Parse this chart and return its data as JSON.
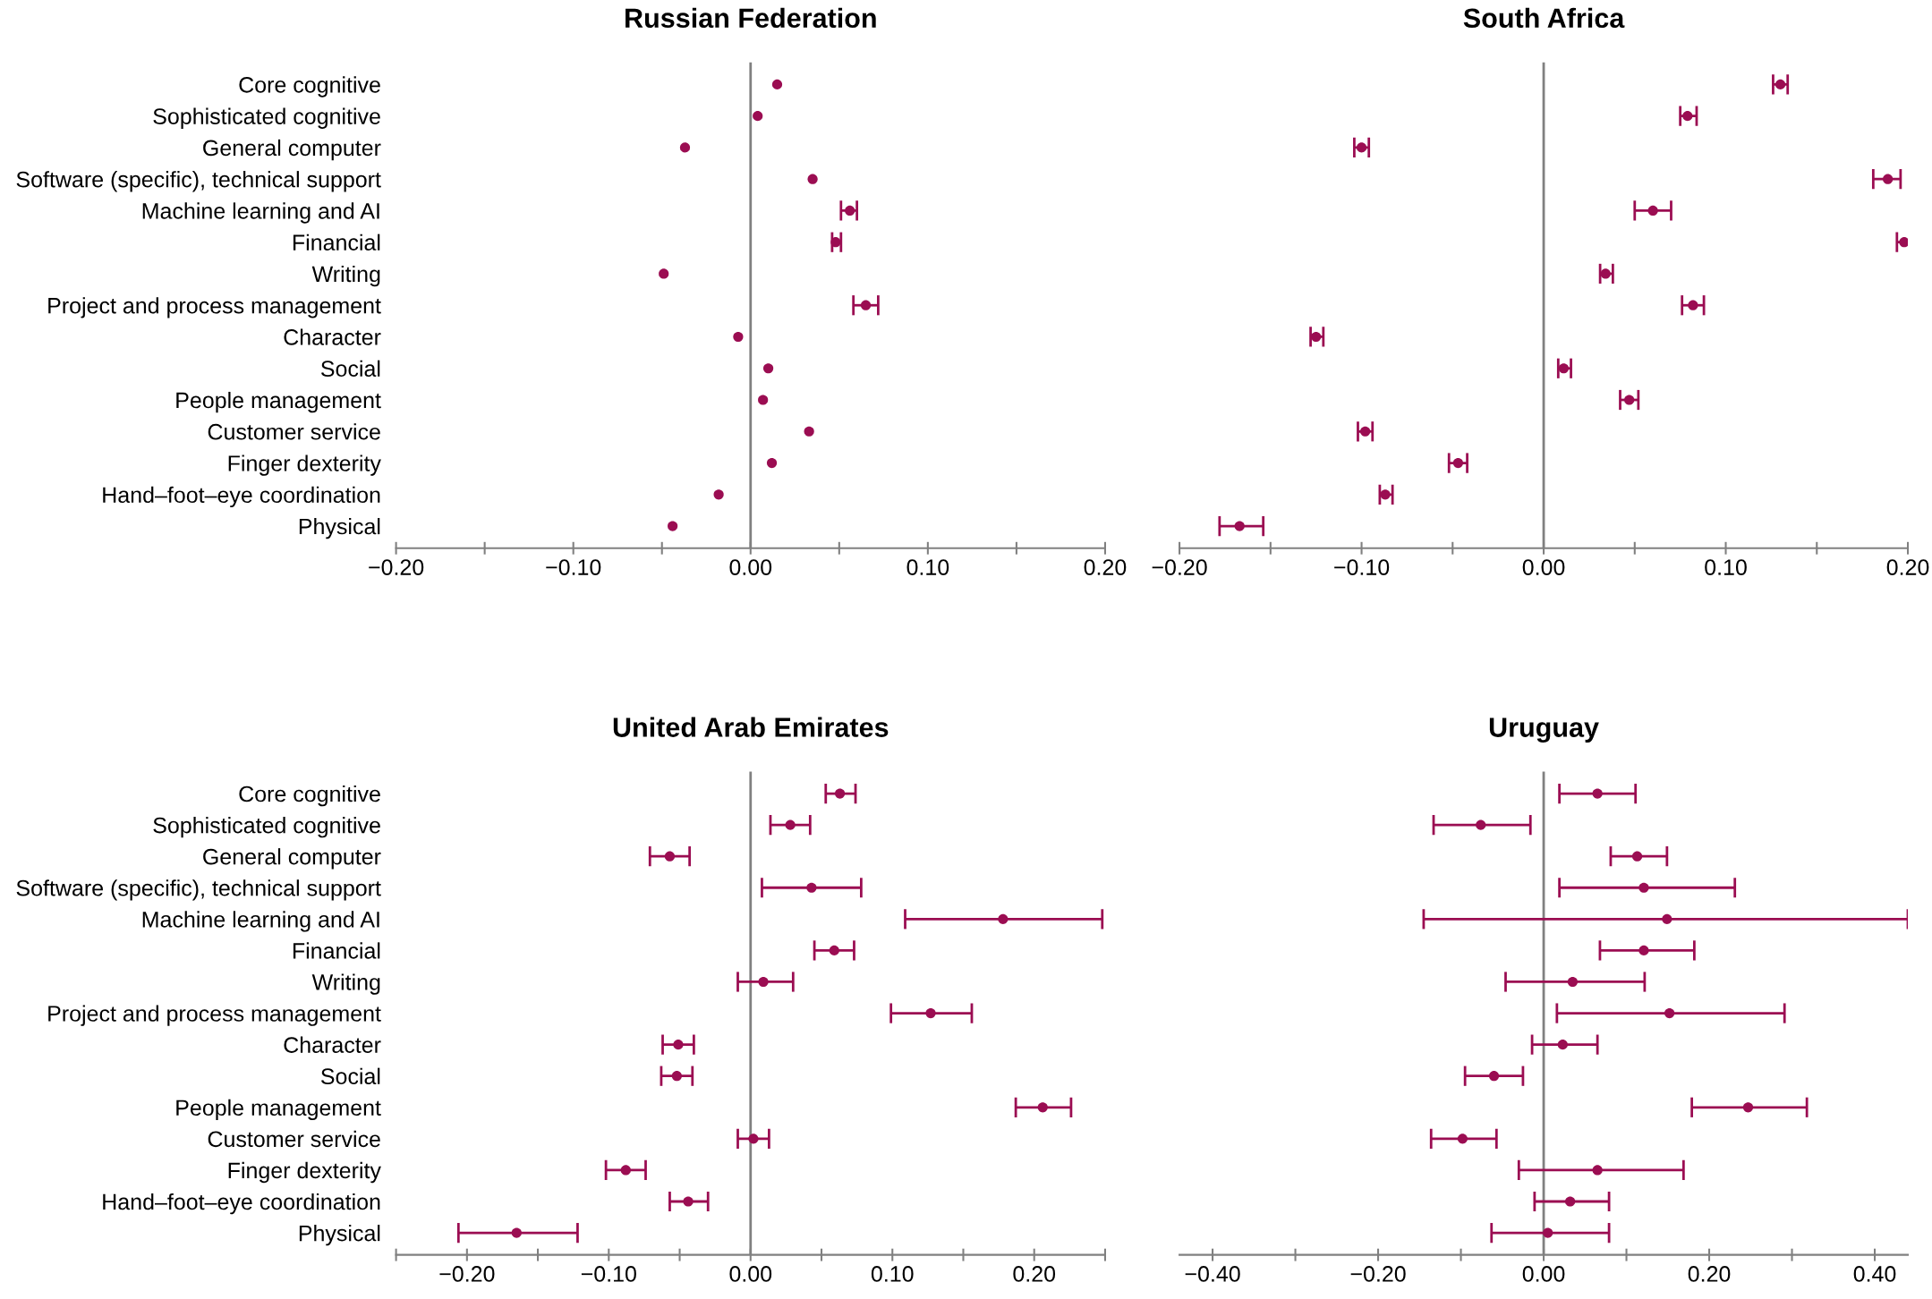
{
  "chart_data": [
    {
      "type": "scatter",
      "orientation": "horizontal",
      "title": "Russian Federation",
      "marker": "circle",
      "grid": false,
      "legend": false,
      "categories": [
        "Core cognitive",
        "Sophisticated cognitive",
        "General computer",
        "Software (specific), technical support",
        "Machine learning and AI",
        "Financial",
        "Writing",
        "Project and process management",
        "Character",
        "Social",
        "People management",
        "Customer service",
        "Finger dexterity",
        "Hand–foot–eye coordination",
        "Physical"
      ],
      "color": "#9b0d52",
      "values": [
        0.015,
        0.004,
        -0.037,
        0.035,
        0.056,
        0.048,
        -0.049,
        0.065,
        -0.007,
        0.01,
        0.007,
        0.033,
        0.012,
        -0.018,
        -0.044
      ],
      "errors": [
        null,
        null,
        null,
        null,
        [
          0.051,
          0.06
        ],
        [
          0.046,
          0.051
        ],
        null,
        [
          0.058,
          0.072
        ],
        null,
        null,
        null,
        null,
        null,
        null,
        null
      ],
      "xlim": [
        -0.2,
        0.2
      ],
      "xticks": [
        {
          "value": -0.2,
          "label": "−0.20"
        },
        {
          "value": -0.15,
          "label": null
        },
        {
          "value": -0.1,
          "label": "−0.10"
        },
        {
          "value": -0.05,
          "label": null
        },
        {
          "value": 0,
          "label": "0.00"
        },
        {
          "value": 0.05,
          "label": null
        },
        {
          "value": 0.1,
          "label": "0.10"
        },
        {
          "value": 0.15,
          "label": null
        },
        {
          "value": 0.2,
          "label": "0.20"
        }
      ],
      "ref_lines": [
        {
          "axis": "x",
          "value": 0,
          "color": "#808080"
        }
      ]
    },
    {
      "type": "scatter",
      "orientation": "horizontal",
      "title": "South Africa",
      "marker": "circle",
      "grid": false,
      "legend": false,
      "tick_labels": "x",
      "categories": [
        null,
        null,
        null,
        null,
        null,
        null,
        null,
        null,
        null,
        null,
        null,
        null,
        null,
        null,
        null
      ],
      "color": "#9b0d52",
      "values": [
        0.13,
        0.079,
        -0.1,
        0.189,
        0.06,
        0.198,
        0.034,
        0.082,
        -0.125,
        0.011,
        0.047,
        -0.098,
        -0.047,
        -0.087,
        -0.167
      ],
      "errors": [
        [
          0.126,
          0.134
        ],
        [
          0.075,
          0.084
        ],
        [
          -0.104,
          -0.096
        ],
        [
          0.181,
          0.196
        ],
        [
          0.05,
          0.07
        ],
        [
          0.194,
          0.201
        ],
        [
          0.031,
          0.038
        ],
        [
          0.076,
          0.088
        ],
        [
          -0.128,
          -0.121
        ],
        [
          0.008,
          0.015
        ],
        [
          0.042,
          0.052
        ],
        [
          -0.102,
          -0.094
        ],
        [
          -0.052,
          -0.042
        ],
        [
          -0.09,
          -0.083
        ],
        [
          -0.178,
          -0.154
        ]
      ],
      "xlim": [
        -0.2,
        0.2
      ],
      "xticks": [
        {
          "value": -0.2,
          "label": "−0.20"
        },
        {
          "value": -0.15,
          "label": null
        },
        {
          "value": -0.1,
          "label": "−0.10"
        },
        {
          "value": -0.05,
          "label": null
        },
        {
          "value": 0,
          "label": "0.00"
        },
        {
          "value": 0.05,
          "label": null
        },
        {
          "value": 0.1,
          "label": "0.10"
        },
        {
          "value": 0.15,
          "label": null
        },
        {
          "value": 0.2,
          "label": "0.20"
        }
      ],
      "ref_lines": [
        {
          "axis": "x",
          "value": 0,
          "color": "#808080"
        }
      ]
    },
    {
      "type": "scatter",
      "orientation": "horizontal",
      "title": "United Arab Emirates",
      "marker": "circle",
      "grid": false,
      "legend": false,
      "categories": [
        "Core cognitive",
        "Sophisticated cognitive",
        "General computer",
        "Software (specific), technical support",
        "Machine learning and AI",
        "Financial",
        "Writing",
        "Project and process management",
        "Character",
        "Social",
        "People management",
        "Customer service",
        "Finger dexterity",
        "Hand–foot–eye coordination",
        "Physical"
      ],
      "color": "#9b0d52",
      "values": [
        0.063,
        0.028,
        -0.057,
        0.043,
        0.178,
        0.059,
        0.009,
        0.127,
        -0.051,
        -0.052,
        0.206,
        0.002,
        -0.088,
        -0.044,
        -0.165
      ],
      "errors": [
        [
          0.053,
          0.074
        ],
        [
          0.014,
          0.042
        ],
        [
          -0.071,
          -0.043
        ],
        [
          0.008,
          0.078
        ],
        [
          0.109,
          0.248
        ],
        [
          0.045,
          0.073
        ],
        [
          -0.009,
          0.03
        ],
        [
          0.099,
          0.156
        ],
        [
          -0.062,
          -0.04
        ],
        [
          -0.063,
          -0.041
        ],
        [
          0.187,
          0.226
        ],
        [
          -0.009,
          0.013
        ],
        [
          -0.102,
          -0.074
        ],
        [
          -0.057,
          -0.03
        ],
        [
          -0.206,
          -0.122
        ]
      ],
      "xlim": [
        -0.25,
        0.25
      ],
      "xticks": [
        {
          "value": -0.25,
          "label": null
        },
        {
          "value": -0.2,
          "label": "−0.20"
        },
        {
          "value": -0.15,
          "label": null
        },
        {
          "value": -0.1,
          "label": "−0.10"
        },
        {
          "value": -0.05,
          "label": null
        },
        {
          "value": 0,
          "label": "0.00"
        },
        {
          "value": 0.05,
          "label": null
        },
        {
          "value": 0.1,
          "label": "0.10"
        },
        {
          "value": 0.15,
          "label": null
        },
        {
          "value": 0.2,
          "label": "0.20"
        },
        {
          "value": 0.25,
          "label": null
        }
      ],
      "ref_lines": [
        {
          "axis": "x",
          "value": 0,
          "color": "#808080"
        }
      ]
    },
    {
      "type": "scatter",
      "orientation": "horizontal",
      "title": "Uruguay",
      "marker": "circle",
      "grid": false,
      "legend": false,
      "tick_labels": "x",
      "categories": [
        null,
        null,
        null,
        null,
        null,
        null,
        null,
        null,
        null,
        null,
        null,
        null,
        null,
        null,
        null
      ],
      "color": "#9b0d52",
      "values": [
        0.065,
        -0.076,
        0.113,
        0.121,
        0.149,
        0.121,
        0.035,
        0.152,
        0.023,
        -0.06,
        0.247,
        -0.098,
        0.065,
        0.032,
        0.005
      ],
      "errors": [
        [
          0.019,
          0.111
        ],
        [
          -0.133,
          -0.016
        ],
        [
          0.081,
          0.149
        ],
        [
          0.019,
          0.231
        ],
        [
          -0.145,
          0.44
        ],
        [
          0.068,
          0.182
        ],
        [
          -0.046,
          0.122
        ],
        [
          0.016,
          0.291
        ],
        [
          -0.014,
          0.065
        ],
        [
          -0.095,
          -0.025
        ],
        [
          0.179,
          0.318
        ],
        [
          -0.136,
          -0.057
        ],
        [
          -0.03,
          0.169
        ],
        [
          -0.011,
          0.079
        ],
        [
          -0.063,
          0.079
        ]
      ],
      "xlim": [
        -0.44,
        0.44
      ],
      "xticks": [
        {
          "value": -0.4,
          "label": "−0.40"
        },
        {
          "value": -0.3,
          "label": null
        },
        {
          "value": -0.2,
          "label": "−0.20"
        },
        {
          "value": -0.1,
          "label": null
        },
        {
          "value": 0,
          "label": "0.00"
        },
        {
          "value": 0.1,
          "label": null
        },
        {
          "value": 0.2,
          "label": "0.20"
        },
        {
          "value": 0.3,
          "label": null
        },
        {
          "value": 0.4,
          "label": "0.40"
        }
      ],
      "ref_lines": [
        {
          "axis": "x",
          "value": 0,
          "color": "#808080"
        }
      ]
    }
  ]
}
